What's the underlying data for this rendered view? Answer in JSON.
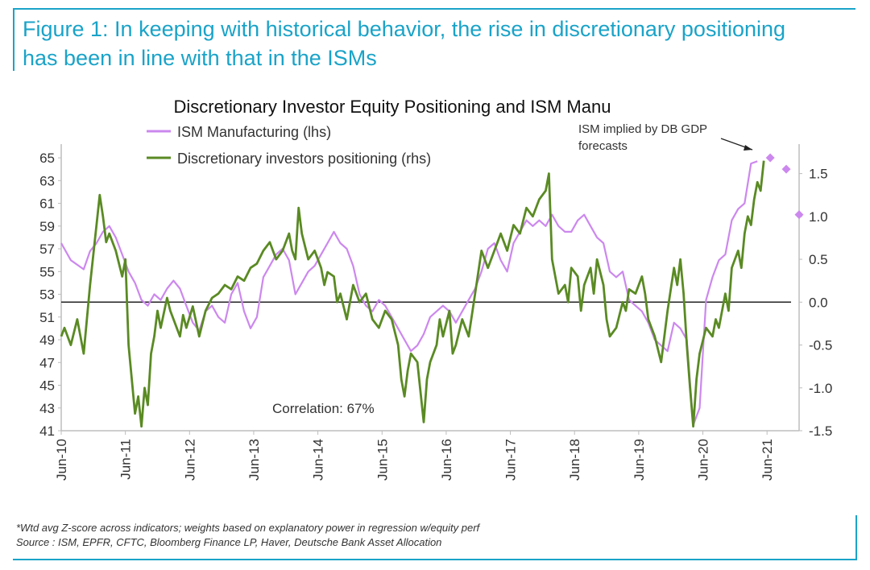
{
  "figure": {
    "title_line1": "Figure 1: In keeping with historical behavior, the rise in discretionary positioning",
    "title_line2": "has been in line with that in the ISMs",
    "accent_color": "#1aa3c8"
  },
  "footnotes": {
    "note": "*Wtd avg Z-score across indicators; weights based on explanatory power in regression w/equity perf",
    "source": "Source : ISM, EPFR, CFTC, Bloomberg Finance LP, Haver, Deutsche Bank Asset Allocation"
  },
  "chart_data": {
    "type": "line",
    "title": "Discretionary  Investor Equity Positioning and ISM Manu",
    "colors": {
      "ism": "#cc88ee",
      "positioning": "#5a8a23",
      "zero_line": "#222222"
    },
    "x_tick_labels": [
      "Jun-10",
      "Jun-11",
      "Jun-12",
      "Jun-13",
      "Jun-14",
      "Jun-15",
      "Jun-16",
      "Jun-17",
      "Jun-18",
      "Jun-19",
      "Jun-20",
      "Jun-21"
    ],
    "x_range": [
      2010.45,
      2021.95
    ],
    "y_left": {
      "label": "lhs",
      "range": [
        41,
        65.5
      ],
      "ticks": [
        41,
        43,
        45,
        47,
        49,
        51,
        53,
        55,
        57,
        59,
        61,
        63,
        65
      ]
    },
    "y_right": {
      "label": "rhs",
      "range": [
        -1.5,
        1.75
      ],
      "ticks": [
        -1.5,
        -1.0,
        -0.5,
        0.0,
        0.5,
        1.0,
        1.5
      ],
      "tick_labels": [
        "-1.5",
        "-1.0",
        "-0.5",
        "0.0",
        "0.5",
        "1.0",
        "1.5"
      ]
    },
    "zero_line_rhs": 0.0,
    "series": [
      {
        "name": "ISM Manufacturing (lhs)",
        "axis": "left",
        "points": [
          [
            2010.45,
            57.5
          ],
          [
            2010.6,
            56.0
          ],
          [
            2010.8,
            55.2
          ],
          [
            2010.9,
            56.8
          ],
          [
            2011.0,
            57.5
          ],
          [
            2011.1,
            58.5
          ],
          [
            2011.2,
            59.0
          ],
          [
            2011.3,
            58.0
          ],
          [
            2011.4,
            56.5
          ],
          [
            2011.5,
            55.0
          ],
          [
            2011.6,
            54.0
          ],
          [
            2011.7,
            52.5
          ],
          [
            2011.8,
            52.0
          ],
          [
            2011.9,
            53.0
          ],
          [
            2012.0,
            52.5
          ],
          [
            2012.1,
            53.5
          ],
          [
            2012.2,
            54.2
          ],
          [
            2012.3,
            53.5
          ],
          [
            2012.4,
            52.0
          ],
          [
            2012.5,
            50.5
          ],
          [
            2012.6,
            49.8
          ],
          [
            2012.7,
            51.5
          ],
          [
            2012.8,
            52.0
          ],
          [
            2012.9,
            51.0
          ],
          [
            2013.0,
            50.5
          ],
          [
            2013.1,
            53.0
          ],
          [
            2013.2,
            54.0
          ],
          [
            2013.3,
            51.5
          ],
          [
            2013.4,
            50.0
          ],
          [
            2013.5,
            51.0
          ],
          [
            2013.6,
            54.5
          ],
          [
            2013.7,
            55.5
          ],
          [
            2013.8,
            56.5
          ],
          [
            2013.9,
            57.0
          ],
          [
            2014.0,
            56.0
          ],
          [
            2014.1,
            53.0
          ],
          [
            2014.2,
            54.0
          ],
          [
            2014.3,
            55.0
          ],
          [
            2014.4,
            55.5
          ],
          [
            2014.5,
            56.5
          ],
          [
            2014.6,
            57.5
          ],
          [
            2014.7,
            58.5
          ],
          [
            2014.8,
            57.5
          ],
          [
            2014.9,
            57.0
          ],
          [
            2015.0,
            55.5
          ],
          [
            2015.1,
            53.0
          ],
          [
            2015.2,
            52.0
          ],
          [
            2015.3,
            51.5
          ],
          [
            2015.4,
            52.5
          ],
          [
            2015.5,
            52.0
          ],
          [
            2015.6,
            51.0
          ],
          [
            2015.7,
            50.0
          ],
          [
            2015.8,
            49.0
          ],
          [
            2015.9,
            48.0
          ],
          [
            2016.0,
            48.5
          ],
          [
            2016.1,
            49.5
          ],
          [
            2016.2,
            51.0
          ],
          [
            2016.3,
            51.5
          ],
          [
            2016.4,
            52.0
          ],
          [
            2016.5,
            51.5
          ],
          [
            2016.6,
            50.5
          ],
          [
            2016.7,
            51.5
          ],
          [
            2016.8,
            52.5
          ],
          [
            2016.9,
            53.5
          ],
          [
            2017.0,
            55.0
          ],
          [
            2017.1,
            57.0
          ],
          [
            2017.2,
            57.5
          ],
          [
            2017.3,
            56.0
          ],
          [
            2017.4,
            55.0
          ],
          [
            2017.5,
            57.5
          ],
          [
            2017.6,
            58.5
          ],
          [
            2017.7,
            59.5
          ],
          [
            2017.8,
            59.0
          ],
          [
            2017.9,
            59.5
          ],
          [
            2018.0,
            59.0
          ],
          [
            2018.1,
            60.0
          ],
          [
            2018.2,
            59.0
          ],
          [
            2018.3,
            58.5
          ],
          [
            2018.4,
            58.5
          ],
          [
            2018.5,
            59.5
          ],
          [
            2018.6,
            60.0
          ],
          [
            2018.7,
            59.0
          ],
          [
            2018.8,
            58.0
          ],
          [
            2018.9,
            57.5
          ],
          [
            2019.0,
            55.0
          ],
          [
            2019.1,
            54.5
          ],
          [
            2019.2,
            55.0
          ],
          [
            2019.3,
            52.5
          ],
          [
            2019.4,
            52.0
          ],
          [
            2019.5,
            51.5
          ],
          [
            2019.6,
            50.5
          ],
          [
            2019.7,
            49.0
          ],
          [
            2019.8,
            48.5
          ],
          [
            2019.9,
            48.0
          ],
          [
            2020.0,
            50.5
          ],
          [
            2020.1,
            50.0
          ],
          [
            2020.2,
            49.0
          ],
          [
            2020.3,
            41.5
          ],
          [
            2020.4,
            43.0
          ],
          [
            2020.5,
            52.5
          ],
          [
            2020.6,
            54.5
          ],
          [
            2020.7,
            56.0
          ],
          [
            2020.8,
            56.5
          ],
          [
            2020.9,
            59.5
          ],
          [
            2021.0,
            60.5
          ],
          [
            2021.1,
            61.0
          ],
          [
            2021.2,
            64.5
          ],
          [
            2021.3,
            64.7
          ]
        ]
      },
      {
        "name": "Discretionary investors positioning (rhs)",
        "axis": "right",
        "points": [
          [
            2010.45,
            -0.4
          ],
          [
            2010.5,
            -0.3
          ],
          [
            2010.6,
            -0.5
          ],
          [
            2010.7,
            -0.2
          ],
          [
            2010.8,
            -0.6
          ],
          [
            2010.9,
            0.2
          ],
          [
            2011.0,
            0.9
          ],
          [
            2011.05,
            1.25
          ],
          [
            2011.1,
            1.0
          ],
          [
            2011.15,
            0.7
          ],
          [
            2011.2,
            0.8
          ],
          [
            2011.3,
            0.6
          ],
          [
            2011.4,
            0.3
          ],
          [
            2011.45,
            0.5
          ],
          [
            2011.5,
            -0.5
          ],
          [
            2011.55,
            -0.9
          ],
          [
            2011.6,
            -1.3
          ],
          [
            2011.65,
            -1.1
          ],
          [
            2011.7,
            -1.45
          ],
          [
            2011.75,
            -1.0
          ],
          [
            2011.8,
            -1.2
          ],
          [
            2011.85,
            -0.6
          ],
          [
            2011.9,
            -0.4
          ],
          [
            2011.95,
            -0.1
          ],
          [
            2012.0,
            -0.3
          ],
          [
            2012.1,
            0.05
          ],
          [
            2012.15,
            -0.1
          ],
          [
            2012.2,
            -0.2
          ],
          [
            2012.3,
            -0.4
          ],
          [
            2012.35,
            -0.15
          ],
          [
            2012.4,
            -0.3
          ],
          [
            2012.5,
            -0.05
          ],
          [
            2012.6,
            -0.4
          ],
          [
            2012.7,
            -0.1
          ],
          [
            2012.8,
            0.05
          ],
          [
            2012.9,
            0.1
          ],
          [
            2013.0,
            0.2
          ],
          [
            2013.1,
            0.15
          ],
          [
            2013.2,
            0.3
          ],
          [
            2013.3,
            0.25
          ],
          [
            2013.4,
            0.4
          ],
          [
            2013.5,
            0.45
          ],
          [
            2013.6,
            0.6
          ],
          [
            2013.7,
            0.7
          ],
          [
            2013.8,
            0.5
          ],
          [
            2013.9,
            0.6
          ],
          [
            2014.0,
            0.8
          ],
          [
            2014.05,
            0.6
          ],
          [
            2014.1,
            0.5
          ],
          [
            2014.15,
            1.1
          ],
          [
            2014.2,
            0.8
          ],
          [
            2014.3,
            0.5
          ],
          [
            2014.4,
            0.6
          ],
          [
            2014.5,
            0.4
          ],
          [
            2014.55,
            0.2
          ],
          [
            2014.6,
            0.35
          ],
          [
            2014.7,
            0.3
          ],
          [
            2014.75,
            0.0
          ],
          [
            2014.8,
            0.1
          ],
          [
            2014.9,
            -0.2
          ],
          [
            2015.0,
            0.2
          ],
          [
            2015.1,
            0.0
          ],
          [
            2015.2,
            0.1
          ],
          [
            2015.3,
            -0.2
          ],
          [
            2015.4,
            -0.3
          ],
          [
            2015.5,
            -0.1
          ],
          [
            2015.6,
            -0.2
          ],
          [
            2015.7,
            -0.5
          ],
          [
            2015.75,
            -0.9
          ],
          [
            2015.8,
            -1.1
          ],
          [
            2015.85,
            -0.8
          ],
          [
            2015.9,
            -0.6
          ],
          [
            2016.0,
            -0.7
          ],
          [
            2016.1,
            -1.4
          ],
          [
            2016.15,
            -0.9
          ],
          [
            2016.2,
            -0.7
          ],
          [
            2016.3,
            -0.5
          ],
          [
            2016.35,
            -0.2
          ],
          [
            2016.4,
            -0.4
          ],
          [
            2016.5,
            -0.1
          ],
          [
            2016.55,
            -0.6
          ],
          [
            2016.6,
            -0.5
          ],
          [
            2016.7,
            -0.2
          ],
          [
            2016.8,
            -0.4
          ],
          [
            2016.9,
            0.1
          ],
          [
            2017.0,
            0.6
          ],
          [
            2017.1,
            0.4
          ],
          [
            2017.2,
            0.6
          ],
          [
            2017.3,
            0.8
          ],
          [
            2017.4,
            0.6
          ],
          [
            2017.5,
            0.9
          ],
          [
            2017.6,
            0.8
          ],
          [
            2017.7,
            1.1
          ],
          [
            2017.8,
            1.0
          ],
          [
            2017.9,
            1.2
          ],
          [
            2018.0,
            1.3
          ],
          [
            2018.05,
            1.5
          ],
          [
            2018.1,
            0.5
          ],
          [
            2018.15,
            0.3
          ],
          [
            2018.2,
            0.1
          ],
          [
            2018.3,
            0.2
          ],
          [
            2018.35,
            0.0
          ],
          [
            2018.4,
            0.4
          ],
          [
            2018.5,
            0.3
          ],
          [
            2018.55,
            -0.1
          ],
          [
            2018.6,
            0.2
          ],
          [
            2018.7,
            0.4
          ],
          [
            2018.75,
            0.1
          ],
          [
            2018.8,
            0.5
          ],
          [
            2018.9,
            0.2
          ],
          [
            2018.95,
            -0.2
          ],
          [
            2019.0,
            -0.4
          ],
          [
            2019.1,
            -0.3
          ],
          [
            2019.2,
            0.0
          ],
          [
            2019.25,
            -0.1
          ],
          [
            2019.3,
            0.15
          ],
          [
            2019.4,
            0.1
          ],
          [
            2019.5,
            0.3
          ],
          [
            2019.55,
            0.1
          ],
          [
            2019.6,
            -0.2
          ],
          [
            2019.7,
            -0.4
          ],
          [
            2019.8,
            -0.7
          ],
          [
            2019.9,
            -0.1
          ],
          [
            2020.0,
            0.4
          ],
          [
            2020.05,
            0.2
          ],
          [
            2020.1,
            0.5
          ],
          [
            2020.15,
            0.1
          ],
          [
            2020.2,
            -0.5
          ],
          [
            2020.25,
            -1.0
          ],
          [
            2020.3,
            -1.45
          ],
          [
            2020.35,
            -0.9
          ],
          [
            2020.4,
            -0.6
          ],
          [
            2020.5,
            -0.3
          ],
          [
            2020.6,
            -0.4
          ],
          [
            2020.65,
            -0.2
          ],
          [
            2020.7,
            -0.3
          ],
          [
            2020.8,
            0.1
          ],
          [
            2020.85,
            -0.1
          ],
          [
            2020.9,
            0.4
          ],
          [
            2021.0,
            0.6
          ],
          [
            2021.05,
            0.4
          ],
          [
            2021.1,
            0.8
          ],
          [
            2021.15,
            1.0
          ],
          [
            2021.2,
            0.9
          ],
          [
            2021.25,
            1.2
          ],
          [
            2021.3,
            1.4
          ],
          [
            2021.35,
            1.3
          ],
          [
            2021.4,
            1.65
          ]
        ]
      }
    ],
    "implied_points": {
      "name": "ISM implied by DB GDP forecasts",
      "axis": "left",
      "points": [
        [
          2021.5,
          65.0
        ],
        [
          2021.75,
          64.0
        ],
        [
          2021.95,
          60.0
        ]
      ]
    },
    "annotations": {
      "implied_label_line1": "ISM implied by DB GDP",
      "implied_label_line2": "forecasts",
      "correlation": "Correlation: 67%"
    }
  }
}
